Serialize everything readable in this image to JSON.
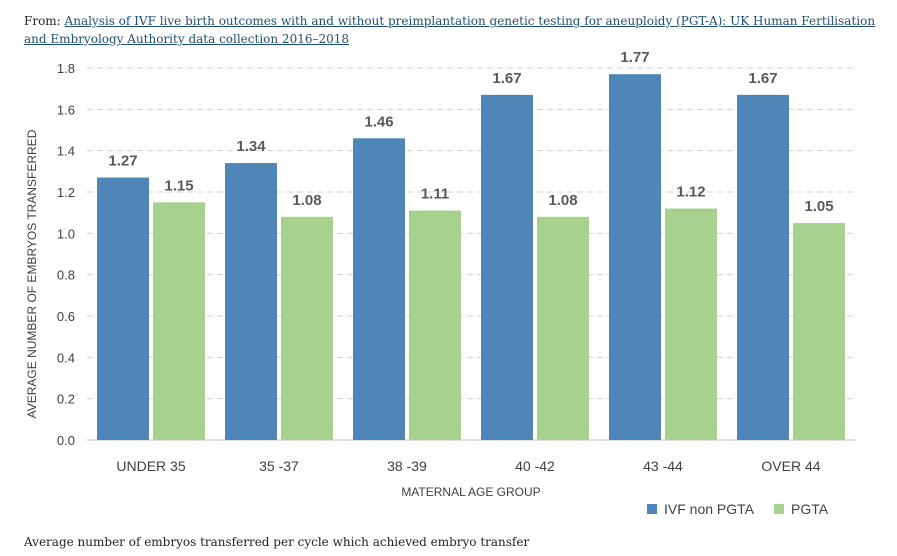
{
  "source": {
    "prefix": "From:",
    "link_text": "Analysis of IVF live birth outcomes with and without preimplantation genetic testing for aneuploidy (PGT-A): UK Human Fertilisation and Embryology Authority data collection 2016–2018"
  },
  "caption": "Average number of embryos transferred per cycle which achieved embryo transfer",
  "chart_data": {
    "type": "bar",
    "title": "",
    "xlabel": "MATERNAL AGE GROUP",
    "ylabel": "AVERAGE NUMBER OF EMBRYOS TRANSFERRED",
    "ylim": [
      0,
      1.8
    ],
    "yticks": [
      "0.0",
      "0.2",
      "0.4",
      "0.6",
      "0.8",
      "1.0",
      "1.2",
      "1.4",
      "1.6",
      "1.8"
    ],
    "grid": true,
    "legend_position": "bottom-right",
    "categories": [
      "UNDER 35",
      "35 -37",
      "38 -39",
      "40 -42",
      "43 -44",
      "OVER 44"
    ],
    "series": [
      {
        "name": "IVF non PGTA",
        "color": "#4f86b8",
        "values": [
          1.27,
          1.34,
          1.46,
          1.67,
          1.77,
          1.67
        ],
        "labels": [
          "1.27",
          "1.34",
          "1.46",
          "1.67",
          "1.77",
          "1.67"
        ]
      },
      {
        "name": "PGTA",
        "color": "#a9d18e",
        "values": [
          1.15,
          1.08,
          1.11,
          1.08,
          1.12,
          1.05
        ],
        "labels": [
          "1.15",
          "1.08",
          "1.11",
          "1.08",
          "1.12",
          "1.05"
        ]
      }
    ]
  }
}
